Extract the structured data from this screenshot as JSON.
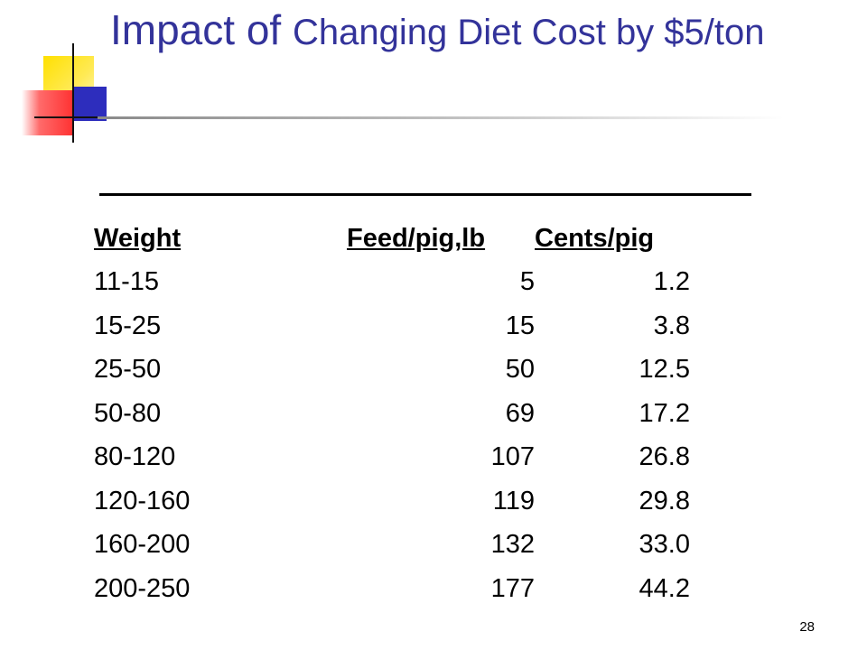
{
  "slide": {
    "title_part1": "Impact of ",
    "title_part2": "Changing Diet Cost by $5/ton",
    "page_number": "28"
  },
  "table": {
    "headers": [
      "Weight",
      "Feed/pig,lb",
      "Cents/pig"
    ],
    "rows": [
      [
        "11-15",
        "5",
        "1.2"
      ],
      [
        "15-25",
        "15",
        "3.8"
      ],
      [
        "25-50",
        "50",
        "12.5"
      ],
      [
        "50-80",
        "69",
        "17.2"
      ],
      [
        "80-120",
        "107",
        "26.8"
      ],
      [
        "120-160",
        "119",
        "29.8"
      ],
      [
        "160-200",
        "132",
        "33.0"
      ],
      [
        "200-250",
        "177",
        "44.2"
      ]
    ]
  },
  "colors": {
    "title": "#33339a",
    "logo_yellow": "#ffe000",
    "logo_red": "#ff3333",
    "logo_blue": "#2d2dbd"
  }
}
